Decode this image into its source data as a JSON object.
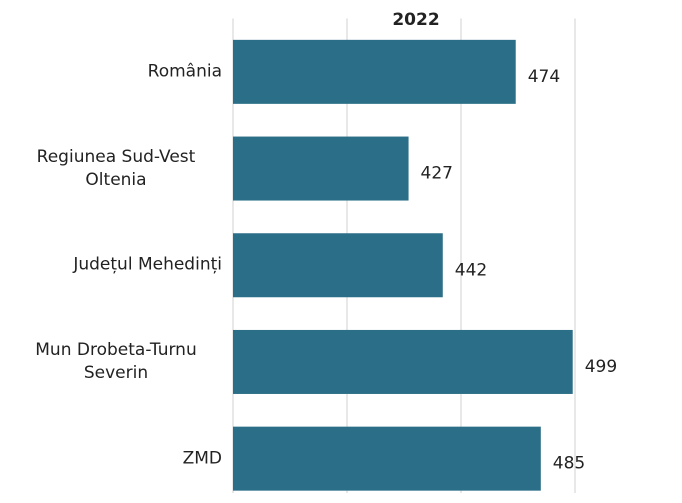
{
  "chart_data": {
    "type": "bar",
    "orientation": "horizontal",
    "title": "2022",
    "categories": [
      "România",
      "Regiunea Sud-Vest Oltenia",
      "Județul Mehedinți",
      "Mun Drobeta-Turnu Severin",
      "ZMD"
    ],
    "values": [
      474,
      427,
      442,
      499,
      485
    ],
    "color": "#2b6e87",
    "xlim": [
      350,
      500
    ],
    "xticks": [
      350,
      400,
      450,
      500
    ],
    "grid": true
  }
}
